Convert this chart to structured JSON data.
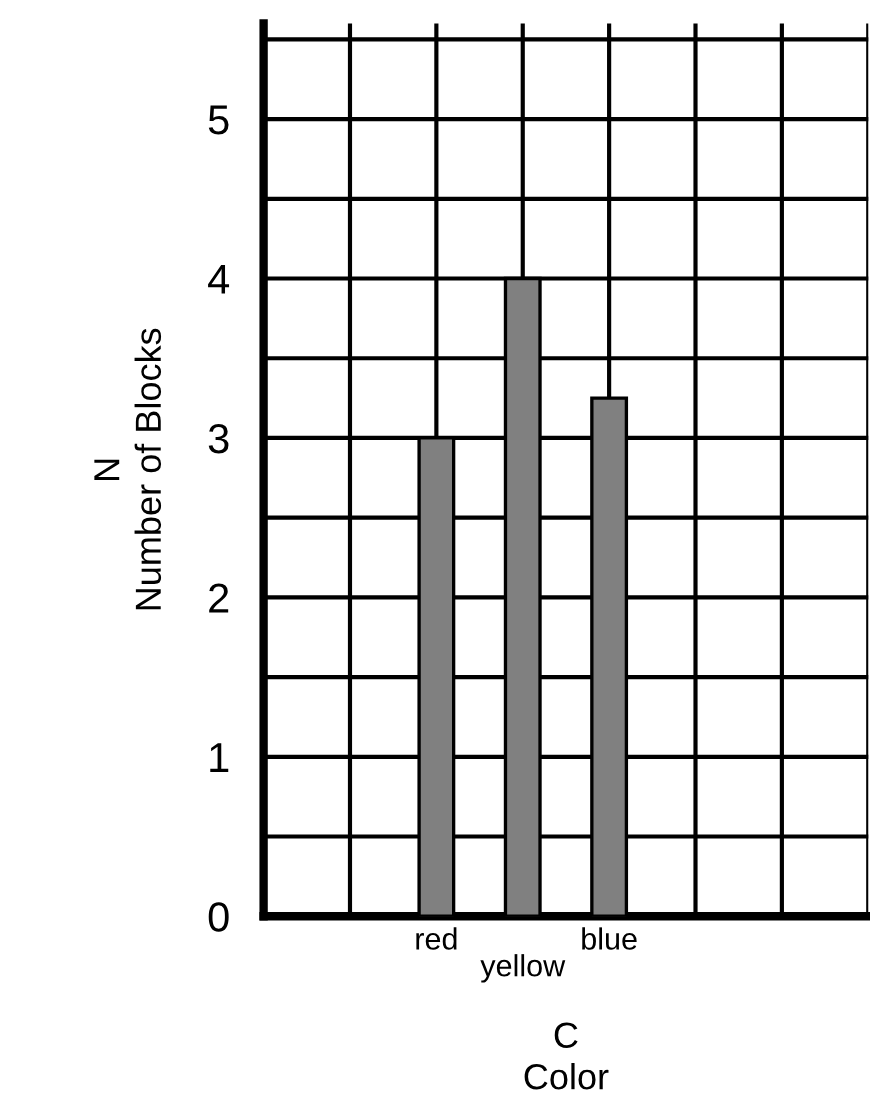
{
  "chart_data": {
    "type": "bar",
    "categories": [
      "red",
      "yellow",
      "blue"
    ],
    "values": [
      3,
      4,
      3.25
    ],
    "color": "#808080",
    "xlabel": "C\nColor",
    "ylabel": "N\nNumber of Blocks",
    "ylim": [
      0,
      5.6
    ],
    "yticks": [
      0,
      {
        "value": 0.5,
        "label": null
      },
      1,
      {
        "value": 1.5,
        "label": null
      },
      2,
      {
        "value": 2.5,
        "label": null
      },
      3,
      {
        "value": 3.5,
        "label": null
      },
      4,
      {
        "value": 4.5,
        "label": null
      },
      5,
      {
        "value": 5.5,
        "label": null
      }
    ],
    "grid": true
  }
}
